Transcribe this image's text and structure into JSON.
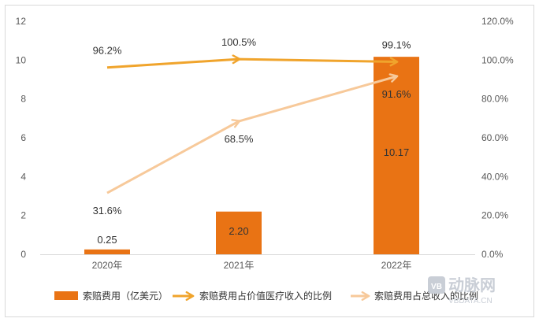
{
  "chart_data": {
    "type": "bar",
    "categories": [
      "2020年",
      "2021年",
      "2022年"
    ],
    "y_left": {
      "ylim": [
        0,
        12
      ],
      "ticks": [
        "0",
        "2",
        "4",
        "6",
        "8",
        "10",
        "12"
      ]
    },
    "y_right": {
      "ylim": [
        0,
        120
      ],
      "ticks": [
        "0.0%",
        "20.0%",
        "40.0%",
        "60.0%",
        "80.0%",
        "100.0%",
        "120.0%"
      ]
    },
    "series": [
      {
        "name": "索赔费用（亿美元）",
        "kind": "bar",
        "axis": "left",
        "values": [
          0.25,
          2.2,
          10.17
        ],
        "labels": [
          "0.25",
          "2.20",
          "10.17"
        ],
        "color": "#e97314"
      },
      {
        "name": "索赔费用占价值医疗收入的比例",
        "kind": "line",
        "axis": "right",
        "values": [
          96.2,
          100.5,
          99.1
        ],
        "labels": [
          "96.2%",
          "100.5%",
          "99.1%"
        ],
        "color": "#f0a42c"
      },
      {
        "name": "索赔费用占总收入的比例",
        "kind": "line",
        "axis": "right",
        "values": [
          31.6,
          68.5,
          91.6
        ],
        "labels": [
          "31.6%",
          "68.5%",
          "91.6%"
        ],
        "color": "#f7c99a"
      }
    ],
    "grid": false,
    "legend": "bottom"
  },
  "watermark": {
    "text": "动脉网",
    "sub": "VBDATA.CN",
    "logo": "VB"
  }
}
